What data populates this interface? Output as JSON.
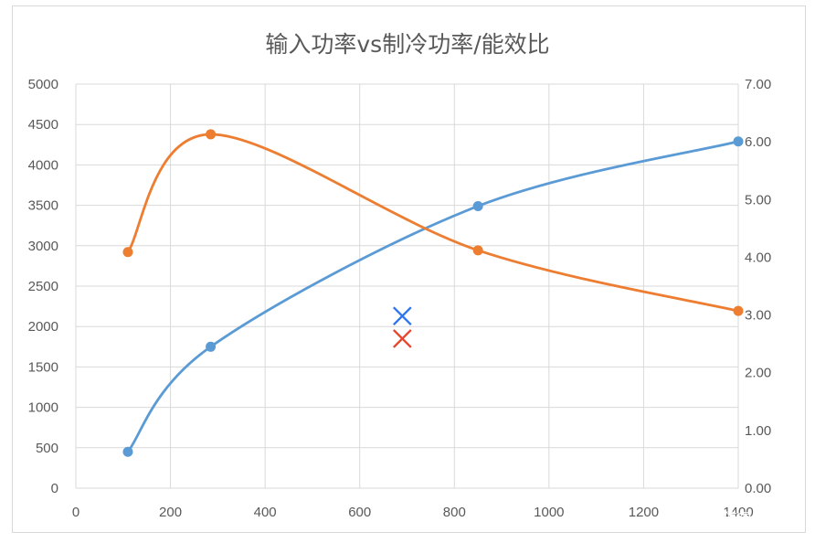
{
  "chart_data": {
    "type": "line",
    "title": "输入功率vs制冷功率/能效比",
    "xlim": [
      0,
      1400
    ],
    "ylim": [
      0,
      5000
    ],
    "y2lim": [
      0,
      7
    ],
    "x_ticks": [
      "0",
      "200",
      "400",
      "600",
      "800",
      "1000",
      "1200",
      "1400"
    ],
    "y_ticks": [
      "0",
      "500",
      "1000",
      "1500",
      "2000",
      "2500",
      "3000",
      "3500",
      "4000",
      "4500",
      "5000"
    ],
    "y2_ticks": [
      "0.00",
      "1.00",
      "2.00",
      "3.00",
      "4.00",
      "5.00",
      "6.00",
      "7.00"
    ],
    "grid": true,
    "legend": "none",
    "series": [
      {
        "axis": "left",
        "color": "#5B9BD5",
        "smooth": true,
        "x": [
          110,
          285,
          850,
          1400
        ],
        "y": [
          450,
          1750,
          3490,
          4290
        ]
      },
      {
        "axis": "right",
        "color": "#ED7D31",
        "smooth": true,
        "x": [
          110,
          285,
          850,
          1400
        ],
        "y": [
          4.09,
          6.13,
          4.12,
          3.07
        ]
      }
    ],
    "annotations": [
      {
        "marker": "x",
        "color": "#2E75F0",
        "x": 690,
        "y": 2130,
        "axis": "left"
      },
      {
        "marker": "x",
        "color": "#E8452C",
        "x": 690,
        "y": 1850,
        "axis": "left"
      }
    ]
  },
  "watermark": {
    "text": "什么值得买",
    "icon": "zhi-logo-icon"
  }
}
